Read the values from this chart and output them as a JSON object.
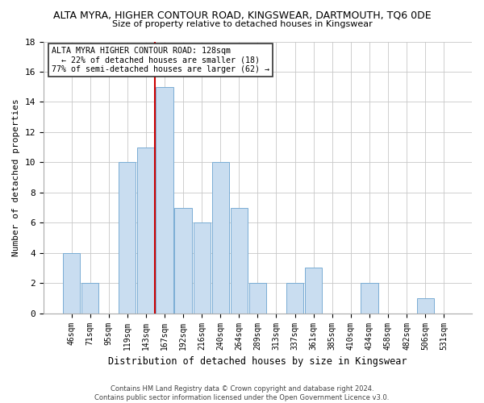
{
  "title": "ALTA MYRA, HIGHER CONTOUR ROAD, KINGSWEAR, DARTMOUTH, TQ6 0DE",
  "subtitle": "Size of property relative to detached houses in Kingswear",
  "xlabel": "Distribution of detached houses by size in Kingswear",
  "ylabel": "Number of detached properties",
  "bar_labels": [
    "46sqm",
    "71sqm",
    "95sqm",
    "119sqm",
    "143sqm",
    "167sqm",
    "192sqm",
    "216sqm",
    "240sqm",
    "264sqm",
    "289sqm",
    "313sqm",
    "337sqm",
    "361sqm",
    "385sqm",
    "410sqm",
    "434sqm",
    "458sqm",
    "482sqm",
    "506sqm",
    "531sqm"
  ],
  "bar_values": [
    4,
    2,
    0,
    10,
    11,
    15,
    7,
    6,
    10,
    7,
    2,
    0,
    2,
    3,
    0,
    0,
    2,
    0,
    0,
    1,
    0
  ],
  "bar_color": "#c9ddf0",
  "bar_edge_color": "#7aadd4",
  "vline_x": 4.5,
  "vline_color": "#cc0000",
  "ylim": [
    0,
    18
  ],
  "yticks": [
    0,
    2,
    4,
    6,
    8,
    10,
    12,
    14,
    16,
    18
  ],
  "annotation_title": "ALTA MYRA HIGHER CONTOUR ROAD: 128sqm",
  "annotation_line1": "← 22% of detached houses are smaller (18)",
  "annotation_line2": "77% of semi-detached houses are larger (62) →",
  "annotation_box_color": "#ffffff",
  "annotation_box_edge": "#333333",
  "footer_line1": "Contains HM Land Registry data © Crown copyright and database right 2024.",
  "footer_line2": "Contains public sector information licensed under the Open Government Licence v3.0.",
  "background_color": "#ffffff",
  "grid_color": "#c8c8c8",
  "font_family": "monospace"
}
